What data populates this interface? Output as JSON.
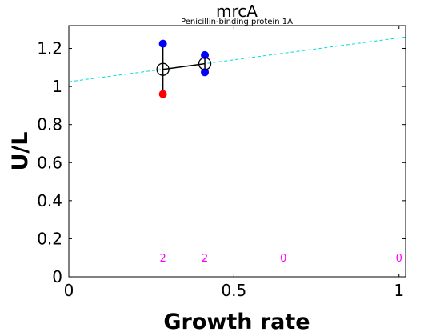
{
  "chart_data": {
    "type": "scatter",
    "title": "mrcA",
    "subtitle": "Penicillin-binding protein 1A",
    "xlabel": "Growth rate",
    "ylabel": "U/L",
    "xlim": [
      0,
      1.02
    ],
    "ylim": [
      0,
      1.32
    ],
    "xticks": [
      0,
      0.5,
      1
    ],
    "xtick_labels": [
      "0",
      "0.5",
      "1"
    ],
    "yticks": [
      0,
      0.2,
      0.4,
      0.6,
      0.8,
      1.0,
      1.2
    ],
    "ytick_labels": [
      "0",
      "0.2",
      "0.4",
      "0.6",
      "0.8",
      "1",
      "1.2"
    ],
    "grid": false,
    "points": [
      {
        "x": 0.285,
        "y": 1.225,
        "color": "#0000ff"
      },
      {
        "x": 0.285,
        "y": 0.96,
        "color": "#ff0000"
      },
      {
        "x": 0.412,
        "y": 1.165,
        "color": "#0000ff"
      },
      {
        "x": 0.412,
        "y": 1.075,
        "color": "#0000ff"
      }
    ],
    "means": [
      {
        "x": 0.285,
        "y": 1.09,
        "ymin": 0.96,
        "ymax": 1.225
      },
      {
        "x": 0.412,
        "y": 1.12,
        "ymin": 1.075,
        "ymax": 1.165
      }
    ],
    "fit_line": {
      "x": [
        0,
        1.02
      ],
      "y": [
        1.025,
        1.26
      ],
      "color": "#00dddd",
      "style": "dashed"
    },
    "counts": [
      {
        "x": 0.285,
        "label": "2"
      },
      {
        "x": 0.412,
        "label": "2"
      },
      {
        "x": 0.65,
        "label": "0"
      },
      {
        "x": 1.0,
        "label": "0"
      }
    ],
    "count_y": 0.1,
    "count_color": "#ff00ff"
  }
}
